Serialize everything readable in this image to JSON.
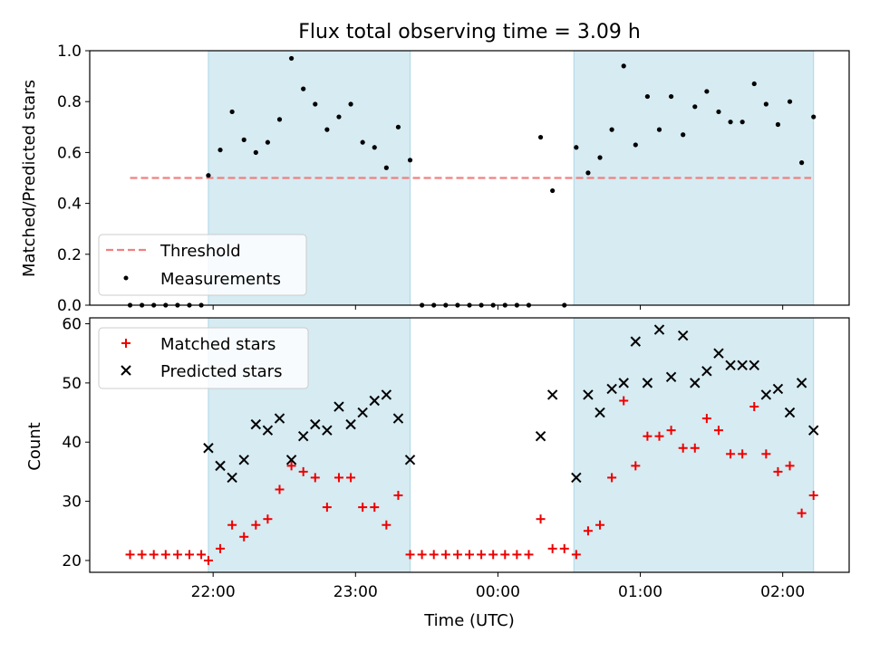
{
  "chart_data": {
    "title": "Flux total observing time = 3.09 h",
    "xlabel": "Time (UTC)",
    "x_tick_labels": [
      "22:00",
      "23:00",
      "00:00",
      "01:00",
      "02:00"
    ],
    "shaded_intervals": [
      [
        "21:58",
        "23:23"
      ],
      [
        "00:32",
        "02:13"
      ]
    ],
    "shade_color": "#add8e6",
    "panels": [
      {
        "type": "scatter",
        "ylabel": "Matched/Predicted stars",
        "ylim": [
          0.0,
          1.0
        ],
        "y_tick_labels": [
          "0.0",
          "0.2",
          "0.4",
          "0.6",
          "0.8",
          "1.0"
        ],
        "legend_position": "lower-left",
        "legend": [
          "Threshold",
          "Measurements"
        ],
        "threshold": {
          "name": "Threshold",
          "y": 0.5,
          "x_start": "21:25",
          "x_end": "02:12",
          "color": "#f08080",
          "style": "dashed"
        },
        "series": [
          {
            "name": "Measurements",
            "marker": "dot",
            "color": "#000000",
            "x": [
              "21:25",
              "21:30",
              "21:35",
              "21:40",
              "21:45",
              "21:50",
              "21:55",
              "21:58",
              "22:03",
              "22:08",
              "22:13",
              "22:18",
              "22:23",
              "22:28",
              "22:33",
              "22:38",
              "22:43",
              "22:48",
              "22:53",
              "22:58",
              "23:03",
              "23:08",
              "23:13",
              "23:18",
              "23:23",
              "23:28",
              "23:33",
              "23:38",
              "23:43",
              "23:48",
              "23:53",
              "23:58",
              "00:03",
              "00:08",
              "00:13",
              "00:18",
              "00:23",
              "00:28",
              "00:33",
              "00:38",
              "00:43",
              "00:48",
              "00:53",
              "00:58",
              "01:03",
              "01:08",
              "01:13",
              "01:18",
              "01:23",
              "01:28",
              "01:33",
              "01:38",
              "01:43",
              "01:48",
              "01:53",
              "01:58",
              "02:03",
              "02:08",
              "02:13"
            ],
            "values": [
              0.0,
              0.0,
              0.0,
              0.0,
              0.0,
              0.0,
              0.0,
              0.51,
              0.61,
              0.76,
              0.65,
              0.6,
              0.64,
              0.73,
              0.97,
              0.85,
              0.79,
              0.69,
              0.74,
              0.79,
              0.64,
              0.62,
              0.54,
              0.7,
              0.57,
              0.0,
              0.0,
              0.0,
              0.0,
              0.0,
              0.0,
              0.0,
              0.0,
              0.0,
              0.0,
              0.66,
              0.45,
              0.0,
              0.62,
              0.52,
              0.58,
              0.69,
              0.94,
              0.63,
              0.82,
              0.69,
              0.82,
              0.67,
              0.78,
              0.84,
              0.76,
              0.72,
              0.72,
              0.87,
              0.79,
              0.71,
              0.8,
              0.56,
              0.74
            ]
          }
        ]
      },
      {
        "type": "scatter",
        "ylabel": "Count",
        "ylim": [
          18,
          61
        ],
        "y_tick_labels": [
          "20",
          "30",
          "40",
          "50",
          "60"
        ],
        "legend_position": "upper-left",
        "legend": [
          "Matched stars",
          "Predicted stars"
        ],
        "series": [
          {
            "name": "Matched stars",
            "marker": "plus",
            "color": "#ee0000",
            "x": [
              "21:25",
              "21:30",
              "21:35",
              "21:40",
              "21:45",
              "21:50",
              "21:55",
              "21:58",
              "22:03",
              "22:08",
              "22:13",
              "22:18",
              "22:23",
              "22:28",
              "22:33",
              "22:38",
              "22:43",
              "22:48",
              "22:53",
              "22:58",
              "23:03",
              "23:08",
              "23:13",
              "23:18",
              "23:23",
              "23:28",
              "23:33",
              "23:38",
              "23:43",
              "23:48",
              "23:53",
              "23:58",
              "00:03",
              "00:08",
              "00:13",
              "00:18",
              "00:23",
              "00:28",
              "00:33",
              "00:38",
              "00:43",
              "00:48",
              "00:53",
              "00:58",
              "01:03",
              "01:08",
              "01:13",
              "01:18",
              "01:23",
              "01:28",
              "01:33",
              "01:38",
              "01:43",
              "01:48",
              "01:53",
              "01:58",
              "02:03",
              "02:08",
              "02:13"
            ],
            "values": [
              21,
              21,
              21,
              21,
              21,
              21,
              21,
              20,
              22,
              26,
              24,
              26,
              27,
              32,
              36,
              35,
              34,
              29,
              34,
              34,
              29,
              29,
              26,
              31,
              21,
              21,
              21,
              21,
              21,
              21,
              21,
              21,
              21,
              21,
              21,
              27,
              22,
              22,
              21,
              25,
              26,
              34,
              47,
              36,
              41,
              41,
              42,
              39,
              39,
              44,
              42,
              38,
              38,
              46,
              38,
              35,
              36,
              28,
              31
            ]
          },
          {
            "name": "Predicted stars",
            "marker": "x",
            "color": "#000000",
            "x": [
              "21:58",
              "22:03",
              "22:08",
              "22:13",
              "22:18",
              "22:23",
              "22:28",
              "22:33",
              "22:38",
              "22:43",
              "22:48",
              "22:53",
              "22:58",
              "23:03",
              "23:08",
              "23:13",
              "23:18",
              "23:23",
              "00:18",
              "00:23",
              "00:33",
              "00:38",
              "00:43",
              "00:48",
              "00:53",
              "00:58",
              "01:03",
              "01:08",
              "01:13",
              "01:18",
              "01:23",
              "01:28",
              "01:33",
              "01:38",
              "01:43",
              "01:48",
              "01:53",
              "01:58",
              "02:03",
              "02:08",
              "02:13"
            ],
            "values": [
              39,
              36,
              34,
              37,
              43,
              42,
              44,
              37,
              41,
              43,
              42,
              46,
              43,
              45,
              47,
              48,
              44,
              37,
              41,
              48,
              34,
              48,
              45,
              49,
              50,
              57,
              50,
              59,
              51,
              58,
              50,
              52,
              55,
              53,
              53,
              53,
              48,
              49,
              45,
              50,
              42
            ]
          }
        ]
      }
    ]
  }
}
